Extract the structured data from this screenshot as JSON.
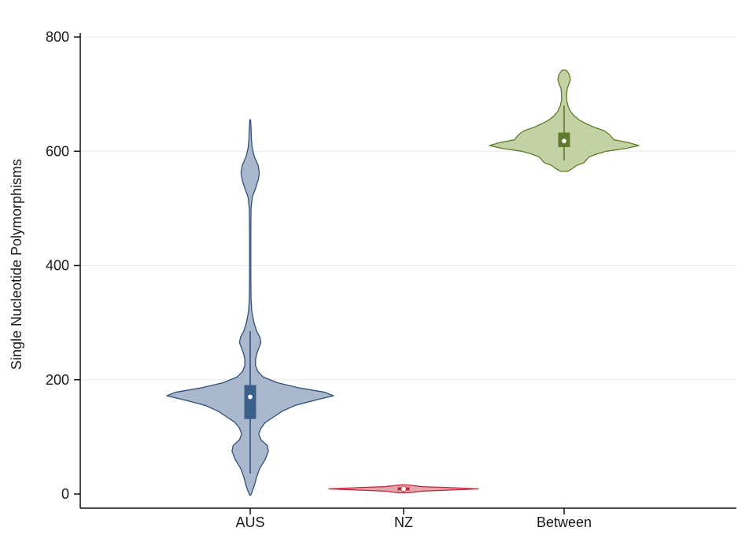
{
  "chart_data": {
    "type": "violin",
    "title": "",
    "xlabel": "",
    "ylabel": "Single Nucleotide Polymorphisms",
    "ylim": [
      0,
      800
    ],
    "yticks": [
      0,
      200,
      400,
      600,
      800
    ],
    "ytick_labels": [
      "0",
      "200",
      "400",
      "600",
      "800"
    ],
    "grid": true,
    "legend": "none",
    "categories": [
      "AUS",
      "NZ",
      "Between"
    ],
    "series": [
      {
        "category": "AUS",
        "color": "#a9b8cc",
        "stroke": "#2f4f7a",
        "box_color": "#3a5f8a",
        "median": 170,
        "q1": 132,
        "q3": 190,
        "whisker_low": 36,
        "whisker_high": 285,
        "min": -2,
        "max": 655,
        "density": [
          [
            -2,
            0.005
          ],
          [
            5,
            0.02
          ],
          [
            15,
            0.04
          ],
          [
            30,
            0.06
          ],
          [
            45,
            0.09
          ],
          [
            60,
            0.14
          ],
          [
            75,
            0.17
          ],
          [
            85,
            0.16
          ],
          [
            95,
            0.1
          ],
          [
            105,
            0.08
          ],
          [
            115,
            0.1
          ],
          [
            125,
            0.14
          ],
          [
            135,
            0.22
          ],
          [
            145,
            0.3
          ],
          [
            155,
            0.42
          ],
          [
            165,
            0.62
          ],
          [
            172,
            0.78
          ],
          [
            178,
            0.7
          ],
          [
            186,
            0.45
          ],
          [
            195,
            0.25
          ],
          [
            205,
            0.12
          ],
          [
            215,
            0.07
          ],
          [
            225,
            0.05
          ],
          [
            235,
            0.05
          ],
          [
            245,
            0.06
          ],
          [
            255,
            0.08
          ],
          [
            265,
            0.1
          ],
          [
            275,
            0.09
          ],
          [
            285,
            0.06
          ],
          [
            300,
            0.035
          ],
          [
            320,
            0.015
          ],
          [
            340,
            0.008
          ],
          [
            380,
            0.006
          ],
          [
            420,
            0.006
          ],
          [
            460,
            0.006
          ],
          [
            500,
            0.008
          ],
          [
            520,
            0.02
          ],
          [
            535,
            0.05
          ],
          [
            550,
            0.075
          ],
          [
            562,
            0.085
          ],
          [
            575,
            0.075
          ],
          [
            590,
            0.04
          ],
          [
            605,
            0.02
          ],
          [
            620,
            0.012
          ],
          [
            640,
            0.008
          ],
          [
            655,
            0.004
          ]
        ]
      },
      {
        "category": "NZ",
        "color": "#e9a3aa",
        "stroke": "#b42a3a",
        "box_color": "#b42a3a",
        "median": 9,
        "q1": 7,
        "q3": 11,
        "whisker_low": 3,
        "whisker_high": 14,
        "min": 2,
        "max": 16,
        "density": [
          [
            2,
            0.06
          ],
          [
            5,
            0.25
          ],
          [
            7,
            0.65
          ],
          [
            9,
            1.0
          ],
          [
            11,
            0.65
          ],
          [
            13,
            0.25
          ],
          [
            16,
            0.04
          ]
        ]
      },
      {
        "category": "Between",
        "color": "#c3d1a5",
        "stroke": "#5f7a2c",
        "box_color": "#5f7a2c",
        "median": 618,
        "q1": 608,
        "q3": 632,
        "whisker_low": 584,
        "whisker_high": 680,
        "min": 565,
        "max": 742,
        "density": [
          [
            565,
            0.03
          ],
          [
            570,
            0.07
          ],
          [
            575,
            0.1
          ],
          [
            580,
            0.16
          ],
          [
            585,
            0.18
          ],
          [
            590,
            0.2
          ],
          [
            595,
            0.26
          ],
          [
            600,
            0.34
          ],
          [
            605,
            0.5
          ],
          [
            610,
            0.6
          ],
          [
            615,
            0.52
          ],
          [
            620,
            0.4
          ],
          [
            625,
            0.38
          ],
          [
            630,
            0.36
          ],
          [
            636,
            0.32
          ],
          [
            642,
            0.24
          ],
          [
            648,
            0.18
          ],
          [
            655,
            0.12
          ],
          [
            662,
            0.08
          ],
          [
            670,
            0.05
          ],
          [
            680,
            0.03
          ],
          [
            690,
            0.02
          ],
          [
            700,
            0.02
          ],
          [
            710,
            0.025
          ],
          [
            718,
            0.04
          ],
          [
            725,
            0.05
          ],
          [
            732,
            0.045
          ],
          [
            738,
            0.03
          ],
          [
            742,
            0.015
          ]
        ]
      }
    ]
  }
}
